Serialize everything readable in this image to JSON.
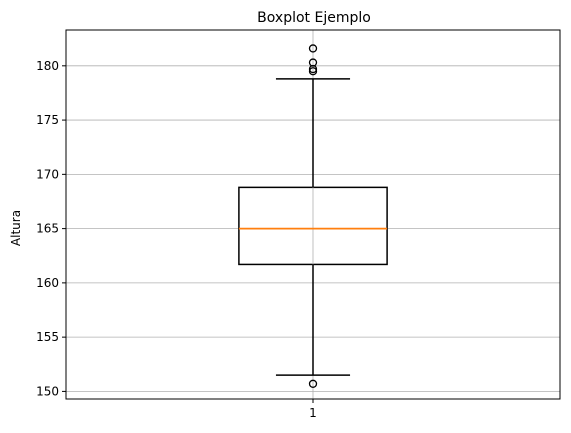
{
  "chart_data": {
    "type": "boxplot",
    "title": "Boxplot Ejemplo",
    "xlabel": "",
    "ylabel": "Altura",
    "categories": [
      "1"
    ],
    "ylim": [
      149.3,
      183.3
    ],
    "yticks": [
      150,
      155,
      160,
      165,
      170,
      175,
      180
    ],
    "grid": true,
    "boxes": [
      {
        "category": "1",
        "q1": 161.7,
        "median": 165.0,
        "q3": 168.8,
        "whisker_low": 151.5,
        "whisker_high": 178.8,
        "fliers": [
          181.6,
          180.3,
          179.7,
          179.5,
          150.7
        ]
      }
    ],
    "colors": {
      "box": "#000000",
      "median": "#ff7f0e",
      "grid": "#b0b0b0"
    }
  }
}
